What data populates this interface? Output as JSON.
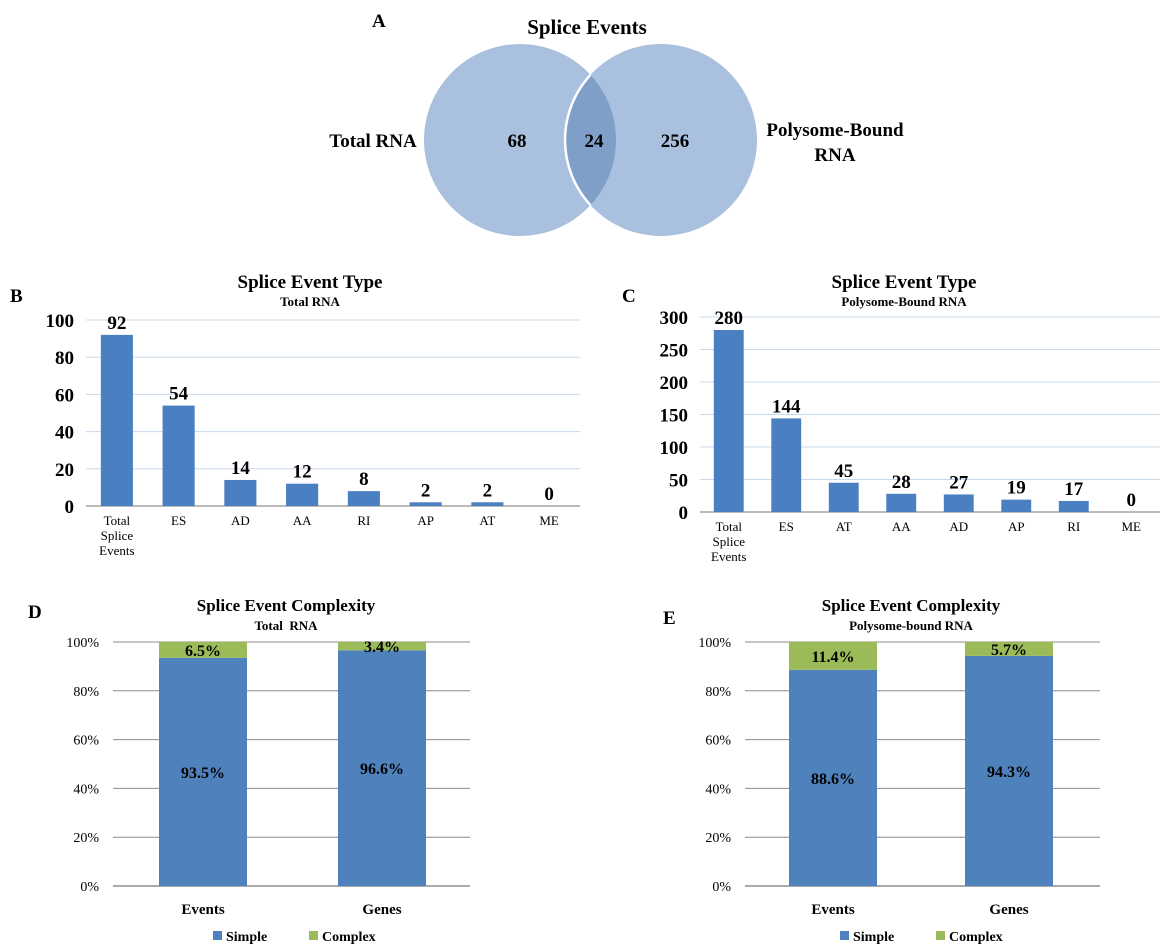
{
  "venn": {
    "panel_label": "A",
    "title": "Splice Events",
    "left_label": "Total RNA",
    "right_label_line1": "Polysome-Bound",
    "right_label_line2": "RNA",
    "left_only": "68",
    "overlap": "24",
    "right_only": "256",
    "colors": {
      "circle": "#a9c1df",
      "overlap": "#7f9fc9"
    }
  },
  "colors": {
    "bar": "#4a7fc1",
    "simple": "#4f81bd",
    "complex": "#9bbb59",
    "grid": "#c8d9ec"
  },
  "chart_data": [
    {
      "panel_label": "A",
      "type": "venn",
      "title": "Splice Events",
      "sets": [
        "Total RNA",
        "Polysome-Bound RNA"
      ],
      "values": {
        "Total RNA only": 68,
        "overlap": 24,
        "Polysome-Bound RNA only": 256
      }
    },
    {
      "panel_label": "B",
      "type": "bar",
      "title": "Splice Event Type",
      "subtitle": "Total RNA",
      "categories": [
        "Total Splice Events",
        "ES",
        "AD",
        "AA",
        "RI",
        "AP",
        "AT",
        "ME"
      ],
      "category_lines": [
        [
          "Total",
          "Splice",
          "Events"
        ],
        [
          "ES"
        ],
        [
          "AD"
        ],
        [
          "AA"
        ],
        [
          "RI"
        ],
        [
          "AP"
        ],
        [
          "AT"
        ],
        [
          "ME"
        ]
      ],
      "values": [
        92,
        54,
        14,
        12,
        8,
        2,
        2,
        0
      ],
      "ylim": [
        0,
        100
      ],
      "yticks": [
        0,
        20,
        40,
        60,
        80,
        100
      ],
      "grid": true
    },
    {
      "panel_label": "C",
      "type": "bar",
      "title": "Splice Event Type",
      "subtitle": "Polysome-Bound RNA",
      "categories": [
        "Total Splice Events",
        "ES",
        "AT",
        "AA",
        "AD",
        "AP",
        "RI",
        "ME"
      ],
      "category_lines": [
        [
          "Total",
          "Splice",
          "Events"
        ],
        [
          "ES"
        ],
        [
          "AT"
        ],
        [
          "AA"
        ],
        [
          "AD"
        ],
        [
          "AP"
        ],
        [
          "RI"
        ],
        [
          "ME"
        ]
      ],
      "values": [
        280,
        144,
        45,
        28,
        27,
        19,
        17,
        0
      ],
      "ylim": [
        0,
        300
      ],
      "yticks": [
        0,
        50,
        100,
        150,
        200,
        250,
        300
      ],
      "grid": true
    },
    {
      "panel_label": "D",
      "type": "stacked_bar",
      "title": "Splice Event Complexity",
      "subtitle": "Total  RNA",
      "categories": [
        "Events",
        "Genes"
      ],
      "series": [
        {
          "name": "Simple",
          "values": [
            93.5,
            96.6
          ],
          "labels": [
            "93.5%",
            "96.6%"
          ]
        },
        {
          "name": "Complex",
          "values": [
            6.5,
            3.4
          ],
          "labels": [
            "6.5%",
            "3.4%"
          ]
        }
      ],
      "ylim": [
        0,
        100
      ],
      "yticks": [
        "0%",
        "20%",
        "40%",
        "60%",
        "80%",
        "100%"
      ],
      "legend": "bottom",
      "grid": true
    },
    {
      "panel_label": "E",
      "type": "stacked_bar",
      "title": "Splice Event Complexity",
      "subtitle": "Polysome-bound RNA",
      "categories": [
        "Events",
        "Genes"
      ],
      "series": [
        {
          "name": "Simple",
          "values": [
            88.6,
            94.3
          ],
          "labels": [
            "88.6%",
            "94.3%"
          ]
        },
        {
          "name": "Complex",
          "values": [
            11.4,
            5.7
          ],
          "labels": [
            "11.4%",
            "5.7%"
          ]
        }
      ],
      "ylim": [
        0,
        100
      ],
      "yticks": [
        "0%",
        "20%",
        "40%",
        "60%",
        "80%",
        "100%"
      ],
      "legend": "bottom",
      "grid": true
    }
  ]
}
